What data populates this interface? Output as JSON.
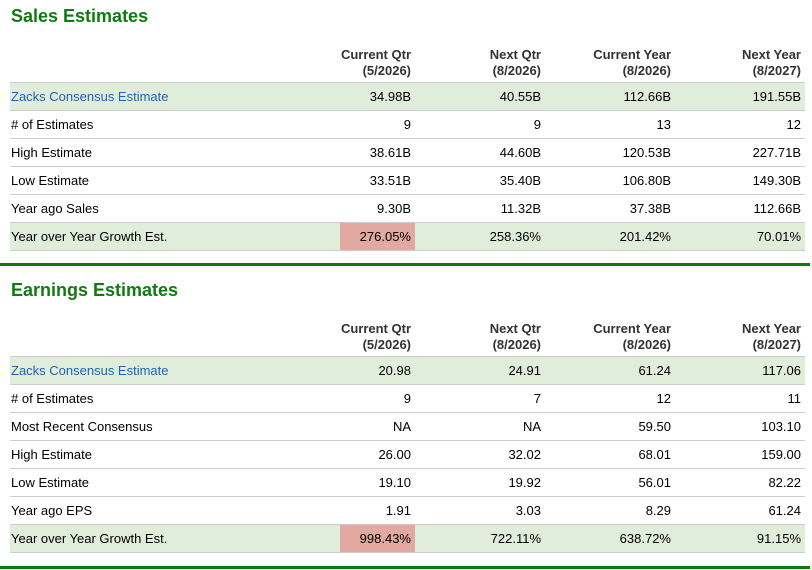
{
  "sales": {
    "title": "Sales Estimates",
    "headers": [
      {
        "line1": "Current Qtr",
        "line2": "(5/2026)"
      },
      {
        "line1": "Next Qtr",
        "line2": "(8/2026)"
      },
      {
        "line1": "Current Year",
        "line2": "(8/2026)"
      },
      {
        "line1": "Next Year",
        "line2": "(8/2027)"
      }
    ],
    "rows": [
      {
        "label": "Zacks Consensus Estimate",
        "values": [
          "34.98B",
          "40.55B",
          "112.66B",
          "191.55B"
        ]
      },
      {
        "label": "# of Estimates",
        "values": [
          "9",
          "9",
          "13",
          "12"
        ]
      },
      {
        "label": "High Estimate",
        "values": [
          "38.61B",
          "44.60B",
          "120.53B",
          "227.71B"
        ]
      },
      {
        "label": "Low Estimate",
        "values": [
          "33.51B",
          "35.40B",
          "106.80B",
          "149.30B"
        ]
      },
      {
        "label": "Year ago Sales",
        "values": [
          "9.30B",
          "11.32B",
          "37.38B",
          "112.66B"
        ]
      },
      {
        "label": "Year over Year Growth Est.",
        "values": [
          "276.05%",
          "258.36%",
          "201.42%",
          "70.01%"
        ]
      }
    ]
  },
  "earnings": {
    "title": "Earnings Estimates",
    "headers": [
      {
        "line1": "Current Qtr",
        "line2": "(5/2026)"
      },
      {
        "line1": "Next Qtr",
        "line2": "(8/2026)"
      },
      {
        "line1": "Current Year",
        "line2": "(8/2026)"
      },
      {
        "line1": "Next Year",
        "line2": "(8/2027)"
      }
    ],
    "rows": [
      {
        "label": "Zacks Consensus Estimate",
        "values": [
          "20.98",
          "24.91",
          "61.24",
          "117.06"
        ]
      },
      {
        "label": "# of Estimates",
        "values": [
          "9",
          "7",
          "12",
          "11"
        ]
      },
      {
        "label": "Most Recent Consensus",
        "values": [
          "NA",
          "NA",
          "59.50",
          "103.10"
        ]
      },
      {
        "label": "High Estimate",
        "values": [
          "26.00",
          "32.02",
          "68.01",
          "159.00"
        ]
      },
      {
        "label": "Low Estimate",
        "values": [
          "19.10",
          "19.92",
          "56.01",
          "82.22"
        ]
      },
      {
        "label": "Year ago EPS",
        "values": [
          "1.91",
          "3.03",
          "8.29",
          "61.24"
        ]
      },
      {
        "label": "Year over Year Growth Est.",
        "values": [
          "998.43%",
          "722.11%",
          "638.72%",
          "91.15%"
        ]
      }
    ]
  },
  "colors": {
    "title_green": "#107b10",
    "row_shade": "#e1eddb",
    "highlight_red": "#e2a9a1",
    "link_blue": "#1f63b4"
  }
}
